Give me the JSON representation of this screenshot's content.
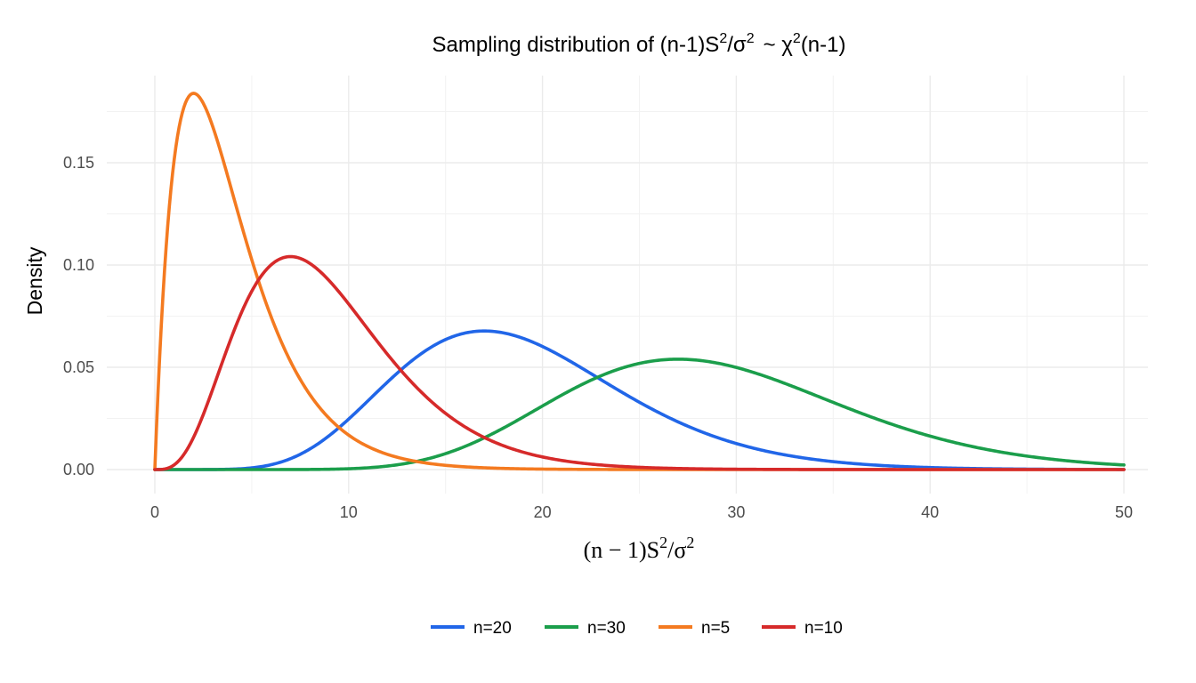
{
  "chart_data": {
    "type": "line",
    "title": {
      "prefix": "Sampling distribution of (n-1)S",
      "sup1": "2",
      "mid": "/σ",
      "sup2": "2",
      "tilde": "~ χ",
      "sup3": "2",
      "suffix": "(n-1)"
    },
    "xlabel": {
      "main": "(n − 1)S",
      "sup1": "2",
      "mid": "/σ",
      "sup2": "2"
    },
    "ylabel": "Density",
    "xlim": [
      0,
      50
    ],
    "ylim": [
      0,
      0.185
    ],
    "x_ticks": [
      0,
      10,
      20,
      30,
      40,
      50
    ],
    "x_tick_labels": [
      "0",
      "10",
      "20",
      "30",
      "40",
      "50"
    ],
    "y_ticks": [
      0,
      0.05,
      0.1,
      0.15
    ],
    "y_tick_labels": [
      "0.00",
      "0.05",
      "0.10",
      "0.15"
    ],
    "grid": true,
    "legend_position": "bottom",
    "x_domain": [
      0,
      50
    ],
    "series": [
      {
        "name": "n=20",
        "df": 19,
        "color": "#2166e8"
      },
      {
        "name": "n=30",
        "df": 29,
        "color": "#1b9e4b"
      },
      {
        "name": "n=5",
        "df": 4,
        "color": "#f47a20"
      },
      {
        "name": "n=10",
        "df": 9,
        "color": "#d62a2a"
      }
    ]
  }
}
